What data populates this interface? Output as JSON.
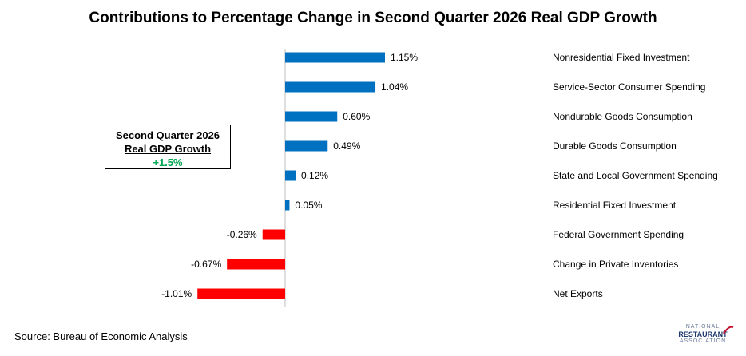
{
  "chart_data": {
    "type": "bar",
    "orientation": "horizontal",
    "title": "Contributions to Percentage Change in Second Quarter 2026 Real GDP Growth",
    "categories": [
      "Nonresidential Fixed Investment",
      "Service-Sector Consumer Spending",
      "Nondurable Goods Consumption",
      "Durable Goods Consumption",
      "State and Local Government Spending",
      "Residential Fixed Investment",
      "Federal Government Spending",
      "Change in Private Inventories",
      "Net Exports"
    ],
    "values": [
      1.15,
      1.04,
      0.6,
      0.49,
      0.12,
      0.05,
      -0.26,
      -0.67,
      -1.01
    ],
    "data_labels": [
      "1.15%",
      "1.04%",
      "0.60%",
      "0.49%",
      "0.12%",
      "0.05%",
      "-0.26%",
      "-0.67%",
      "-1.01%"
    ],
    "positive_color": "#0070c0",
    "negative_color": "#ff0000",
    "grid": false,
    "legend": "none"
  },
  "callout": {
    "line1": "Second Quarter 2026",
    "line2": "Real GDP Growth",
    "value": "+1.5%",
    "value_color": "#00a651"
  },
  "source": "Source: Bureau of Economic Analysis",
  "logo": {
    "line1": "NATIONAL",
    "line2": "RESTAURANT",
    "line3": "ASSOCIATION"
  }
}
